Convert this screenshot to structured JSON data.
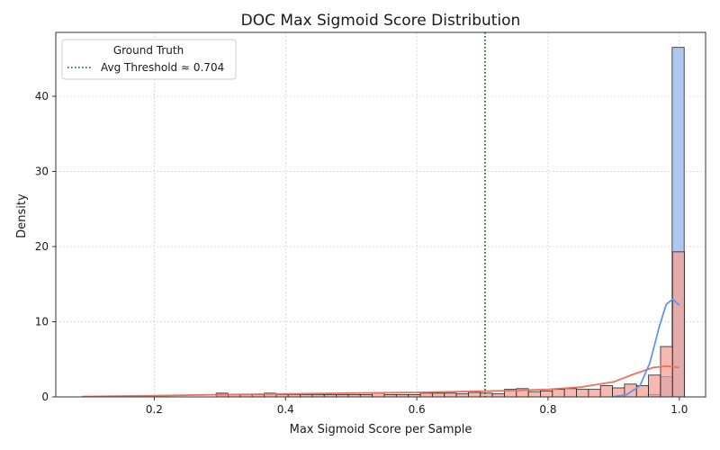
{
  "chart_data": {
    "type": "histogram",
    "title": "DOC Max Sigmoid Score Distribution",
    "xlabel": "Max Sigmoid Score per Sample",
    "ylabel": "Density",
    "xlim": [
      0.05,
      1.04
    ],
    "ylim": [
      0,
      48.5
    ],
    "x_ticks": [
      0.2,
      0.4,
      0.6,
      0.8,
      1.0
    ],
    "x_tick_labels": [
      "0.2",
      "0.4",
      "0.6",
      "0.8",
      "1.0"
    ],
    "y_ticks": [
      0,
      10,
      20,
      30,
      40
    ],
    "y_tick_labels": [
      "0",
      "10",
      "20",
      "30",
      "40"
    ],
    "grid": true,
    "legend": {
      "title": "Ground Truth",
      "placement": "top-left",
      "entries": [
        {
          "label": "Avg Threshold ≈ 0.704",
          "color": "#006400",
          "style": "dotted"
        }
      ]
    },
    "threshold": 0.704,
    "bin_width": 0.0183,
    "colors": {
      "blue_fill": "#aec7f0",
      "red_fill": "#f4a294",
      "overlap_fill": "#d98f8f",
      "blue_kde": "#6495ed",
      "red_kde": "#f07060",
      "threshold_line": "#006400"
    },
    "series": [
      {
        "class": "blue",
        "bins": [
          {
            "x": 0.9616,
            "density": 0.3
          },
          {
            "x": 0.9799,
            "density": 2.7
          },
          {
            "x": 0.9982,
            "density": 46.5
          }
        ],
        "kde": [
          [
            0.9,
            0.05
          ],
          [
            0.92,
            0.3
          ],
          [
            0.94,
            1.5
          ],
          [
            0.955,
            4.5
          ],
          [
            0.97,
            9.5
          ],
          [
            0.98,
            12.3
          ],
          [
            0.99,
            13.0
          ],
          [
            1.0,
            12.2
          ]
        ]
      },
      {
        "class": "red",
        "bins": [
          {
            "x": 0.3034,
            "density": 0.5
          },
          {
            "x": 0.3217,
            "density": 0.3
          },
          {
            "x": 0.34,
            "density": 0.3
          },
          {
            "x": 0.3583,
            "density": 0.3
          },
          {
            "x": 0.3766,
            "density": 0.5
          },
          {
            "x": 0.3949,
            "density": 0.3
          },
          {
            "x": 0.4132,
            "density": 0.3
          },
          {
            "x": 0.4315,
            "density": 0.3
          },
          {
            "x": 0.4498,
            "density": 0.3
          },
          {
            "x": 0.4681,
            "density": 0.3
          },
          {
            "x": 0.4864,
            "density": 0.3
          },
          {
            "x": 0.5047,
            "density": 0.3
          },
          {
            "x": 0.523,
            "density": 0.3
          },
          {
            "x": 0.5413,
            "density": 0.5
          },
          {
            "x": 0.5596,
            "density": 0.3
          },
          {
            "x": 0.5779,
            "density": 0.3
          },
          {
            "x": 0.5962,
            "density": 0.3
          },
          {
            "x": 0.6145,
            "density": 0.5
          },
          {
            "x": 0.6328,
            "density": 0.5
          },
          {
            "x": 0.6511,
            "density": 0.5
          },
          {
            "x": 0.6694,
            "density": 0.4
          },
          {
            "x": 0.6877,
            "density": 0.6
          },
          {
            "x": 0.706,
            "density": 0.5
          },
          {
            "x": 0.7243,
            "density": 0.4
          },
          {
            "x": 0.7426,
            "density": 1.0
          },
          {
            "x": 0.7609,
            "density": 1.1
          },
          {
            "x": 0.7792,
            "density": 0.7
          },
          {
            "x": 0.7975,
            "density": 0.8
          },
          {
            "x": 0.8158,
            "density": 1.0
          },
          {
            "x": 0.8341,
            "density": 1.1
          },
          {
            "x": 0.8524,
            "density": 1.0
          },
          {
            "x": 0.8707,
            "density": 1.0
          },
          {
            "x": 0.889,
            "density": 1.5
          },
          {
            "x": 0.9073,
            "density": 1.2
          },
          {
            "x": 0.9256,
            "density": 1.7
          },
          {
            "x": 0.9439,
            "density": 1.5
          },
          {
            "x": 0.9622,
            "density": 2.9
          },
          {
            "x": 0.9805,
            "density": 6.7
          },
          {
            "x": 0.9988,
            "density": 19.3
          }
        ],
        "kde": [
          [
            0.09,
            0.05
          ],
          [
            0.2,
            0.15
          ],
          [
            0.3,
            0.3
          ],
          [
            0.4,
            0.4
          ],
          [
            0.5,
            0.5
          ],
          [
            0.6,
            0.6
          ],
          [
            0.7,
            0.75
          ],
          [
            0.75,
            0.85
          ],
          [
            0.8,
            1.0
          ],
          [
            0.85,
            1.3
          ],
          [
            0.9,
            2.0
          ],
          [
            0.93,
            3.0
          ],
          [
            0.96,
            3.9
          ],
          [
            0.98,
            4.1
          ],
          [
            1.0,
            3.9
          ]
        ]
      }
    ]
  }
}
